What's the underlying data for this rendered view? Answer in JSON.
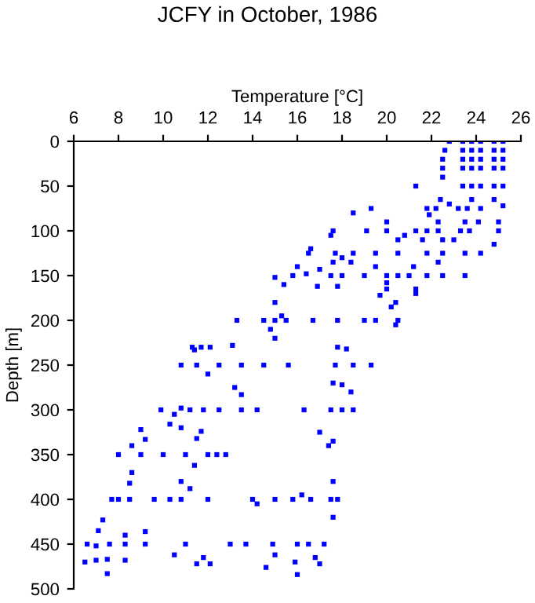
{
  "chart_data": {
    "type": "scatter",
    "title": "JCFY in October, 1986",
    "xlabel": "Temperature [°C]",
    "ylabel": "Depth [m]",
    "xlim": [
      6,
      26
    ],
    "xticks": [
      6,
      8,
      10,
      12,
      14,
      16,
      18,
      20,
      22,
      24,
      26
    ],
    "ylim": [
      500,
      0
    ],
    "yticks": [
      0,
      50,
      100,
      150,
      200,
      250,
      300,
      350,
      400,
      450,
      500
    ],
    "grid": false,
    "marker": "square",
    "series": [
      {
        "color": "#0000ff",
        "x": [
          23.4,
          23.8,
          24.2,
          24.8,
          25.2,
          23.4,
          23.8,
          24.2,
          24.8,
          25.2,
          23.4,
          23.8,
          24.2,
          24.8,
          25.2,
          23.4,
          23.8,
          24.2,
          24.8,
          25.2,
          23.4,
          23.8,
          24.2,
          24.8,
          25.2,
          22.8,
          22.6,
          22.5,
          22.5,
          22.5,
          21.3,
          22.4,
          22.8,
          21.8,
          22.2,
          23.2,
          23.6,
          24.2,
          25.2,
          24.8,
          23.8,
          19.3,
          18.5,
          21.9,
          22.3,
          23.5,
          24.1,
          25.0,
          20.0,
          25.0,
          24.8,
          23.7,
          23.3,
          22.3,
          21.8,
          21.3,
          20.0,
          19.1,
          20.8,
          17.6,
          17.5,
          20.5,
          22.5,
          23.0,
          21.6,
          16.6,
          16.5,
          17.7,
          18.5,
          19.5,
          20.5,
          21.8,
          22.5,
          23.5,
          24.2,
          18.0,
          17.6,
          22.3,
          21.2,
          18.4,
          23.5,
          19.5,
          16.0,
          15.0,
          15.8,
          16.4,
          17.0,
          17.5,
          18.0,
          19.0,
          20.0,
          20.5,
          21.0,
          21.8,
          22.5,
          20.0,
          20.0,
          15.4,
          16.9,
          17.8,
          21.3,
          21.3,
          19.7,
          20.4,
          20.2,
          20.4,
          15.0,
          15.3,
          14.5,
          13.3,
          15.0,
          15.5,
          16.7,
          17.8,
          19.0,
          19.5,
          20.5,
          14.8,
          15.0,
          13.1,
          11.3,
          11.7,
          12.1,
          11.4,
          10.8,
          11.5,
          12.5,
          13.5,
          14.5,
          15.6,
          12.0,
          13.2,
          13.5,
          17.8,
          18.2,
          17.7,
          18.5,
          19.3,
          17.6,
          18.0,
          18.4,
          9.9,
          10.5,
          10.8,
          11.2,
          10.3,
          10.8,
          11.8,
          12.5,
          13.5,
          14.2,
          16.3,
          17.5,
          18.0,
          18.5,
          17.0,
          17.4,
          17.6,
          9.0,
          9.2,
          8.6,
          8.0,
          9.0,
          10.0,
          11.0,
          12.0,
          12.4,
          12.8,
          11.4,
          11.5,
          11.7,
          8.6,
          8.5,
          10.8,
          11.2,
          8.0,
          7.7,
          8.5,
          9.6,
          10.3,
          10.8,
          12.0,
          14.0,
          14.2,
          15.0,
          15.8,
          16.2,
          16.6,
          17.5,
          17.8,
          17.6,
          17.6,
          7.3,
          7.1,
          6.6,
          7.0,
          7.6,
          8.3,
          9.2,
          11.0,
          13.0,
          13.7,
          14.9,
          16.0,
          16.5,
          17.2,
          8.3,
          9.2,
          6.5,
          7.0,
          7.5,
          8.3,
          10.5,
          11.5,
          11.8,
          12.1,
          14.6,
          15.0,
          15.9,
          16.0,
          16.8,
          17.0,
          7.5
        ],
        "values": [
          0,
          0,
          0,
          0,
          0,
          10,
          10,
          10,
          10,
          10,
          20,
          20,
          20,
          20,
          20,
          30,
          30,
          30,
          30,
          30,
          50,
          50,
          50,
          50,
          50,
          0,
          10,
          20,
          30,
          40,
          50,
          65,
          70,
          75,
          75,
          75,
          75,
          75,
          72,
          65,
          65,
          75,
          80,
          82,
          90,
          90,
          90,
          90,
          90,
          100,
          115,
          100,
          100,
          100,
          100,
          100,
          100,
          100,
          105,
          100,
          105,
          110,
          110,
          110,
          110,
          120,
          125,
          125,
          125,
          125,
          125,
          125,
          125,
          125,
          125,
          130,
          135,
          135,
          140,
          135,
          150,
          140,
          140,
          152,
          150,
          148,
          143,
          150,
          150,
          150,
          150,
          150,
          150,
          150,
          150,
          158,
          165,
          160,
          162,
          162,
          165,
          170,
          172,
          180,
          185,
          205,
          180,
          195,
          200,
          200,
          200,
          200,
          200,
          200,
          200,
          200,
          200,
          210,
          220,
          228,
          230,
          230,
          230,
          233,
          250,
          250,
          250,
          250,
          250,
          250,
          260,
          275,
          283,
          230,
          232,
          250,
          250,
          250,
          270,
          272,
          280,
          300,
          305,
          298,
          300,
          316,
          320,
          300,
          300,
          300,
          300,
          300,
          300,
          300,
          300,
          325,
          340,
          335,
          322,
          333,
          340,
          350,
          350,
          350,
          350,
          350,
          350,
          350,
          362,
          332,
          324,
          370,
          382,
          380,
          388,
          400,
          400,
          400,
          400,
          400,
          400,
          400,
          400,
          405,
          400,
          400,
          395,
          400,
          400,
          400,
          420,
          380,
          423,
          435,
          450,
          452,
          450,
          450,
          450,
          450,
          450,
          450,
          450,
          450,
          450,
          450,
          440,
          436,
          470,
          468,
          467,
          468,
          462,
          472,
          465,
          472,
          476,
          462,
          470,
          484,
          465,
          472,
          483
        ]
      }
    ]
  }
}
